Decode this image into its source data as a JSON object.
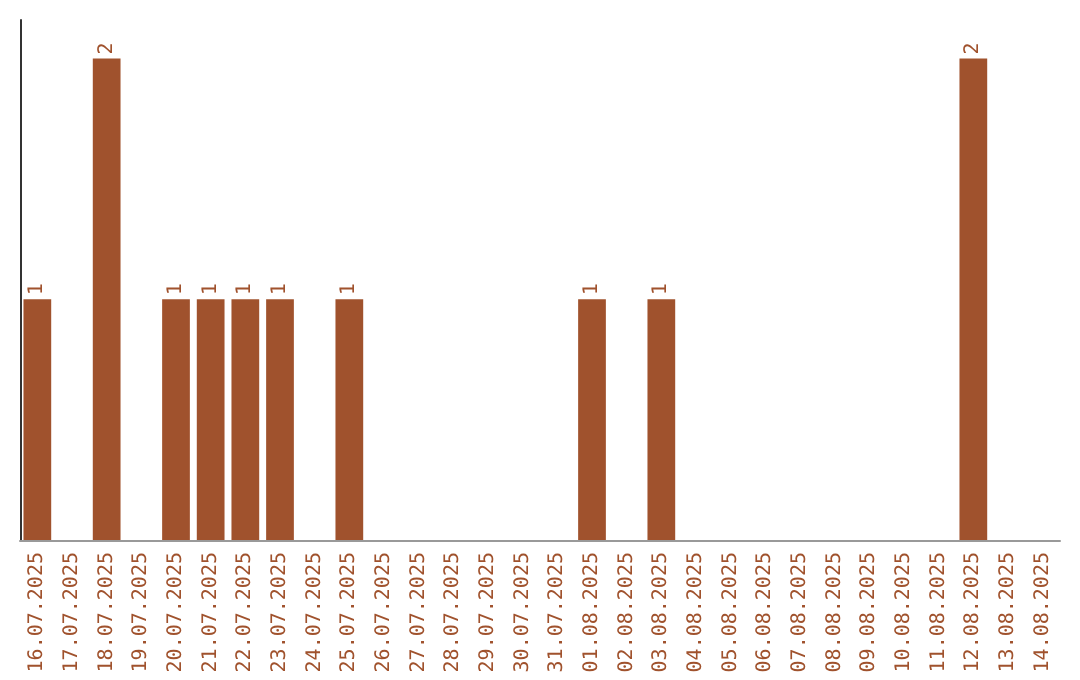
{
  "chart_data": {
    "type": "bar",
    "categories": [
      "16.07.2025",
      "17.07.2025",
      "18.07.2025",
      "19.07.2025",
      "20.07.2025",
      "21.07.2025",
      "22.07.2025",
      "23.07.2025",
      "24.07.2025",
      "25.07.2025",
      "26.07.2025",
      "27.07.2025",
      "28.07.2025",
      "29.07.2025",
      "30.07.2025",
      "31.07.2025",
      "01.08.2025",
      "02.08.2025",
      "03.08.2025",
      "04.08.2025",
      "05.08.2025",
      "06.08.2025",
      "07.08.2025",
      "08.08.2025",
      "09.08.2025",
      "10.08.2025",
      "11.08.2025",
      "12.08.2025",
      "13.08.2025",
      "14.08.2025"
    ],
    "values": [
      1,
      0,
      2,
      0,
      1,
      1,
      1,
      1,
      0,
      1,
      0,
      0,
      0,
      0,
      0,
      0,
      1,
      0,
      1,
      0,
      0,
      0,
      0,
      0,
      0,
      0,
      0,
      2,
      0,
      0
    ],
    "value_labels": [
      "1",
      null,
      "2",
      null,
      "1",
      "1",
      "1",
      "1",
      null,
      "1",
      null,
      null,
      null,
      null,
      null,
      null,
      "1",
      null,
      "1",
      null,
      null,
      null,
      null,
      null,
      null,
      null,
      null,
      "2",
      null,
      null
    ],
    "color": "#a0522d"
  }
}
